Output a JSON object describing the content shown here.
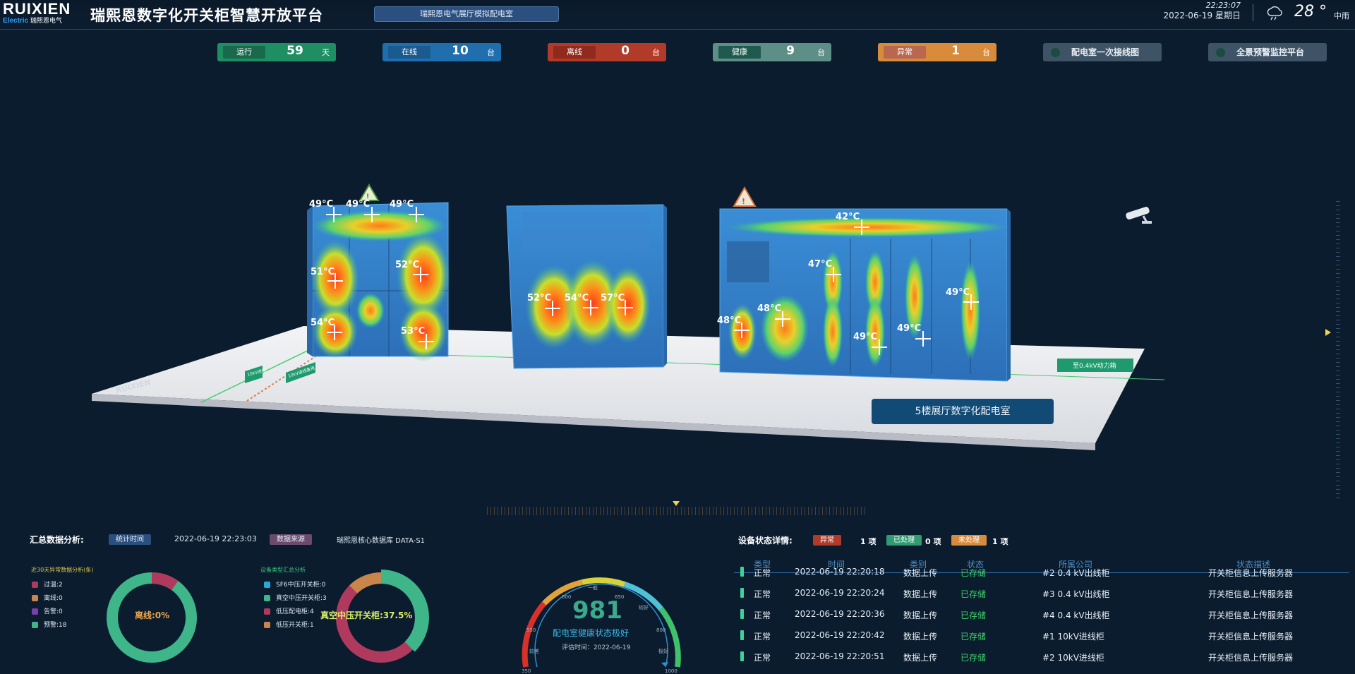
{
  "header": {
    "brand": "RUIXIEN",
    "brand_sub_en": "Electric",
    "brand_sub_cn": "瑞熙恩电气",
    "brand_reg": "®",
    "title": "瑞熙恩数字化开关柜智慧开放平台",
    "room_tab": "瑞熙恩电气展厅模拟配电室",
    "time": "22:23:07",
    "date": "2022-06-19 星期日",
    "temperature": "28 °",
    "weather": "中雨",
    "weather_icon": "cloud-rain-icon"
  },
  "stats": [
    {
      "label": "运行",
      "value": "59",
      "unit": "天",
      "color": "#1f8f63"
    },
    {
      "label": "在线",
      "value": "10",
      "unit": "台",
      "color": "#1f6fae"
    },
    {
      "label": "离线",
      "value": "0",
      "unit": "台",
      "color": "#b23a28"
    },
    {
      "label": "健康",
      "value": "9",
      "unit": "台",
      "color": "#5e8f86"
    },
    {
      "label": "异常",
      "value": "1",
      "unit": "台",
      "color": "#d98b3c"
    }
  ],
  "nav": {
    "wiring": "配电室一次接线图",
    "monitor": "全景预警监控平台"
  },
  "scene": {
    "room_label": "5楼展厅数字化配电室",
    "floor_logo": "RUIXIEN",
    "power_label": "至0.4kV动力箱",
    "in_label_1": "10kV进线",
    "in_label_2": "10kV进线备用",
    "cabinet1_temps": [
      "49°C",
      "49°C",
      "49°C",
      "51°C",
      "52°C",
      "54°C",
      "53°C"
    ],
    "transformer_temps": [
      "52°C",
      "54°C",
      "57°C"
    ],
    "cabinet3_temps": [
      "42°C",
      "47°C",
      "49°C",
      "48°C",
      "48°C",
      "49°C",
      "49°C"
    ]
  },
  "analysis": {
    "title": "汇总数据分析:",
    "time_tag": "统计时间",
    "time_value": "2022-06-19 22:23:03",
    "source_tag": "数据来源",
    "source_value": "瑞熙恩核心数据库 DATA-S1",
    "abnormal_title": "近30天异常数据分析(条)",
    "abnormal_legend": [
      {
        "label": "过温:2",
        "color": "#b03a5e"
      },
      {
        "label": "离线:0",
        "color": "#c9864a"
      },
      {
        "label": "告警:0",
        "color": "#7a3fa8"
      },
      {
        "label": "预警:18",
        "color": "#3fb58a"
      }
    ],
    "abnormal_center": "离线:0%",
    "type_title": "设备类型汇总分析",
    "type_legend": [
      {
        "label": "SF6中压开关柜:0",
        "color": "#2aa9d6"
      },
      {
        "label": "真空中压开关柜:3",
        "color": "#3fb58a"
      },
      {
        "label": "低压配电柜:4",
        "color": "#b03a5e"
      },
      {
        "label": "低压开关柜:1",
        "color": "#c9864a"
      }
    ],
    "type_center": "真空中压开关柜:37.5%",
    "gauge": {
      "value": "981",
      "caption": "配电室健康状态极好",
      "date": "评估时间：2022-06-19",
      "ticks": [
        "350",
        "550",
        "600",
        "650",
        "800",
        "1000"
      ],
      "words": [
        "较差",
        "一般",
        "较好",
        "极好"
      ]
    }
  },
  "status": {
    "title": "设备状态详情:",
    "tags": [
      {
        "label": "异常",
        "count": "1 项"
      },
      {
        "label": "已处理",
        "count": "0 项"
      },
      {
        "label": "未处理",
        "count": "1 项"
      }
    ],
    "columns": [
      "类型",
      "时间",
      "类别",
      "状态",
      "所属公司",
      "状态描述"
    ],
    "rows": [
      {
        "type": "正常",
        "time": "2022-06-19 22:20:18",
        "category": "数据上传",
        "state": "已存储",
        "company": "#2 0.4 kV出线柜",
        "desc": "开关柜信息上传服务器"
      },
      {
        "type": "正常",
        "time": "2022-06-19 22:20:24",
        "category": "数据上传",
        "state": "已存储",
        "company": "#3 0.4 kV出线柜",
        "desc": "开关柜信息上传服务器"
      },
      {
        "type": "正常",
        "time": "2022-06-19 22:20:36",
        "category": "数据上传",
        "state": "已存储",
        "company": "#4 0.4 kV出线柜",
        "desc": "开关柜信息上传服务器"
      },
      {
        "type": "正常",
        "time": "2022-06-19 22:20:42",
        "category": "数据上传",
        "state": "已存储",
        "company": "#1 10kV进线柜",
        "desc": "开关柜信息上传服务器"
      },
      {
        "type": "正常",
        "time": "2022-06-19 22:20:51",
        "category": "数据上传",
        "state": "已存储",
        "company": "#2 10kV进线柜",
        "desc": "开关柜信息上传服务器"
      }
    ]
  }
}
